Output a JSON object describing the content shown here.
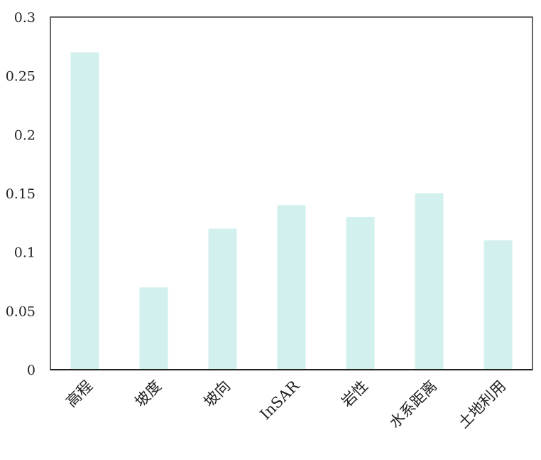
{
  "chart_data": {
    "type": "bar",
    "categories": [
      "高程",
      "坡度",
      "坡向",
      "InSAR",
      "岩性",
      "水系距离",
      "土地利用"
    ],
    "values": [
      0.27,
      0.07,
      0.12,
      0.14,
      0.13,
      0.15,
      0.11
    ],
    "title": "",
    "xlabel": "",
    "ylabel": "",
    "ylim": [
      0,
      0.3
    ],
    "yticks": [
      "0",
      "0.05",
      "0.1",
      "0.15",
      "0.2",
      "0.25",
      "0.3"
    ],
    "grid": false,
    "legend": "none",
    "bar_color": "#d2f1ee"
  }
}
